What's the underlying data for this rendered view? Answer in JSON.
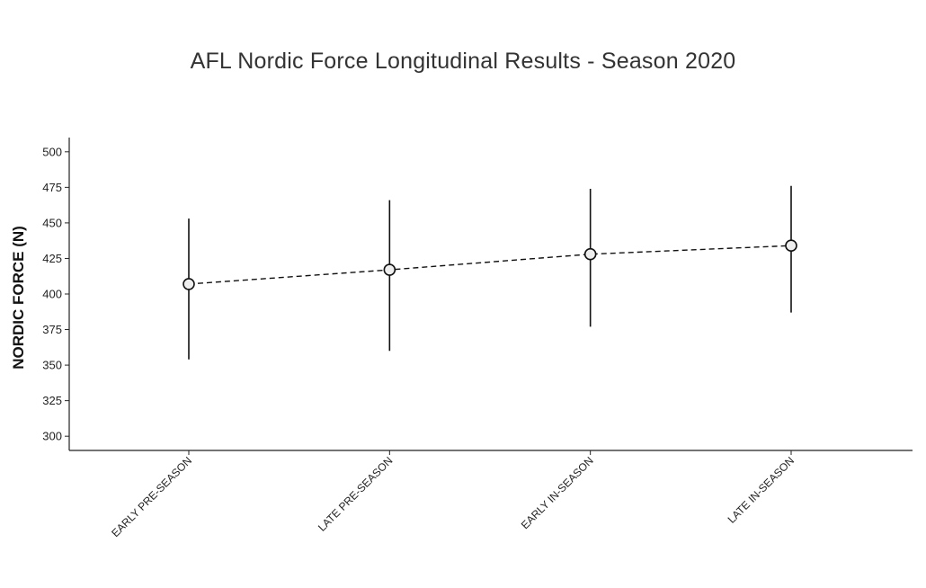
{
  "chart_data": {
    "type": "scatter",
    "title": "AFL Nordic Force Longitudinal Results - Season 2020",
    "xlabel": "",
    "ylabel": "NORDIC FORCE (N)",
    "ylim": [
      290,
      510
    ],
    "yticks": [
      300,
      325,
      350,
      375,
      400,
      425,
      450,
      475,
      500
    ],
    "categories": [
      "EARLY PRE-SEASON",
      "LATE PRE-SEASON",
      "EARLY IN-SEASON",
      "LATE IN-SEASON"
    ],
    "series": [
      {
        "values": [
          407,
          417,
          428,
          434
        ],
        "error_low": [
          354,
          360,
          377,
          387
        ],
        "error_high": [
          453,
          466,
          474,
          476
        ]
      }
    ],
    "line_style": "dashed",
    "marker_fill": "#eeeeee",
    "grid": false,
    "legend": "none"
  }
}
